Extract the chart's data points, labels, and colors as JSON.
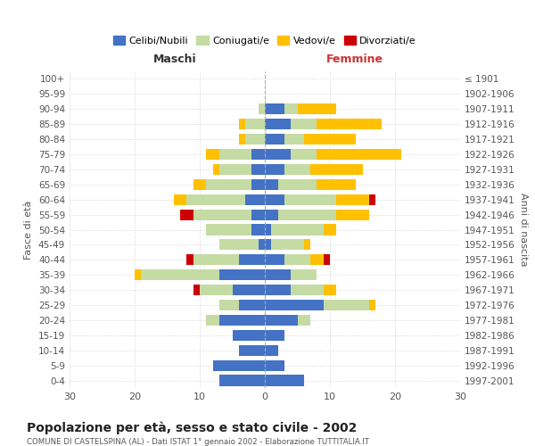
{
  "age_groups": [
    "100+",
    "95-99",
    "90-94",
    "85-89",
    "80-84",
    "75-79",
    "70-74",
    "65-69",
    "60-64",
    "55-59",
    "50-54",
    "45-49",
    "40-44",
    "35-39",
    "30-34",
    "25-29",
    "20-24",
    "15-19",
    "10-14",
    "5-9",
    "0-4"
  ],
  "birth_years": [
    "≤ 1901",
    "1902-1906",
    "1907-1911",
    "1912-1916",
    "1917-1921",
    "1922-1926",
    "1927-1931",
    "1932-1936",
    "1937-1941",
    "1942-1946",
    "1947-1951",
    "1952-1956",
    "1957-1961",
    "1962-1966",
    "1967-1971",
    "1972-1976",
    "1977-1981",
    "1982-1986",
    "1987-1991",
    "1992-1996",
    "1997-2001"
  ],
  "male_celibe": [
    0,
    0,
    0,
    0,
    0,
    2,
    2,
    2,
    3,
    2,
    2,
    1,
    4,
    7,
    5,
    4,
    7,
    5,
    4,
    8,
    7
  ],
  "male_coniugato": [
    0,
    0,
    1,
    3,
    3,
    5,
    5,
    7,
    9,
    9,
    7,
    6,
    7,
    12,
    5,
    3,
    2,
    0,
    0,
    0,
    0
  ],
  "male_vedovo": [
    0,
    0,
    0,
    1,
    1,
    2,
    1,
    2,
    2,
    0,
    0,
    0,
    0,
    1,
    0,
    0,
    0,
    0,
    0,
    0,
    0
  ],
  "male_divorziato": [
    0,
    0,
    0,
    0,
    0,
    0,
    0,
    0,
    0,
    2,
    0,
    0,
    1,
    0,
    1,
    0,
    0,
    0,
    0,
    0,
    0
  ],
  "female_celibe": [
    0,
    0,
    3,
    4,
    3,
    4,
    3,
    2,
    3,
    2,
    1,
    1,
    3,
    4,
    4,
    9,
    5,
    3,
    2,
    3,
    6
  ],
  "female_coniugato": [
    0,
    0,
    2,
    4,
    3,
    4,
    4,
    6,
    8,
    9,
    8,
    5,
    4,
    4,
    5,
    7,
    2,
    0,
    0,
    0,
    0
  ],
  "female_vedovo": [
    0,
    0,
    6,
    10,
    8,
    13,
    8,
    6,
    5,
    5,
    2,
    1,
    2,
    0,
    2,
    1,
    0,
    0,
    0,
    0,
    0
  ],
  "female_divorziato": [
    0,
    0,
    0,
    0,
    0,
    0,
    0,
    0,
    1,
    0,
    0,
    0,
    1,
    0,
    0,
    0,
    0,
    0,
    0,
    0,
    0
  ],
  "colors": {
    "celibe": "#4472c4",
    "coniugato": "#c5dba4",
    "vedovo": "#ffc000",
    "divorziato": "#cc0000"
  },
  "legend_labels": [
    "Celibi/Nubili",
    "Coniugati/e",
    "Vedovi/e",
    "Divorziati/e"
  ],
  "title": "Popolazione per età, sesso e stato civile - 2002",
  "subtitle": "COMUNE DI CASTELSPINA (AL) - Dati ISTAT 1° gennaio 2002 - Elaborazione TUTTITALIA.IT",
  "xlabel_left": "Maschi",
  "xlabel_right": "Femmine",
  "ylabel_left": "Fasce di età",
  "ylabel_right": "Anni di nascita",
  "xlim": 30,
  "background_color": "#ffffff",
  "grid_color": "#cccccc"
}
